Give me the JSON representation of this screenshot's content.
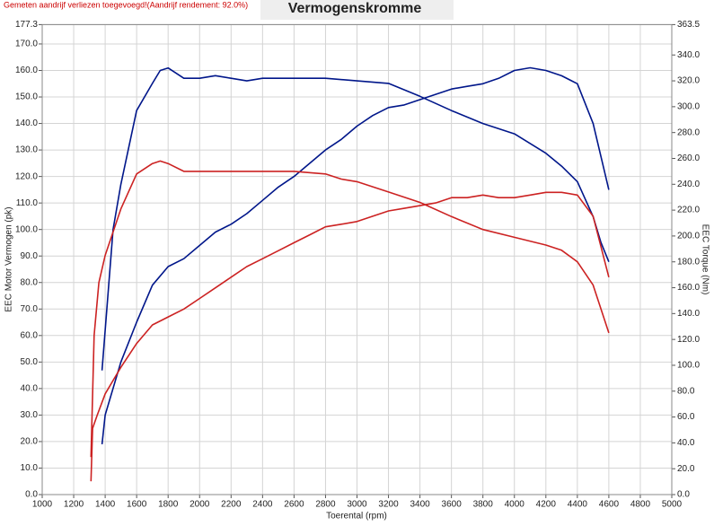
{
  "chart_data": {
    "type": "line",
    "title": "Vermogenskromme",
    "note": "Gemeten aandrijf verliezen toegevoegd!(Aandrijf rendement: 92.0%)",
    "x_label": "Toerental (rpm)",
    "y_label": "EEC Motor Vermogen (pk)",
    "y2_label": "EEC Torque (Nm)",
    "grid": true,
    "xlim": [
      1000,
      5000
    ],
    "xticks": [
      1000,
      1200,
      1400,
      1600,
      1800,
      2000,
      2200,
      2400,
      2600,
      2800,
      3000,
      3200,
      3400,
      3600,
      3800,
      4000,
      4200,
      4400,
      4600,
      4800,
      5000
    ],
    "ylim": [
      0,
      177.3
    ],
    "yticks": [
      {
        "value": 0,
        "label": "0.0"
      },
      {
        "value": 10,
        "label": "10.0"
      },
      {
        "value": 20,
        "label": "20.0"
      },
      {
        "value": 30,
        "label": "30.0"
      },
      {
        "value": 40,
        "label": "40.0"
      },
      {
        "value": 50,
        "label": "50.0"
      },
      {
        "value": 60,
        "label": "60.0"
      },
      {
        "value": 70,
        "label": "70.0"
      },
      {
        "value": 80,
        "label": "80.0"
      },
      {
        "value": 90,
        "label": "90.0"
      },
      {
        "value": 100,
        "label": "100.0"
      },
      {
        "value": 110,
        "label": "110.0"
      },
      {
        "value": 120,
        "label": "120.0"
      },
      {
        "value": 130,
        "label": "130.0"
      },
      {
        "value": 140,
        "label": "140.0"
      },
      {
        "value": 150,
        "label": "150.0"
      },
      {
        "value": 160,
        "label": "160.0"
      },
      {
        "value": 170,
        "label": "170.0"
      },
      177.3
    ],
    "y2lim": [
      0,
      363.5
    ],
    "y2ticks": [
      {
        "value": 0,
        "label": "0.0"
      },
      {
        "value": 20,
        "label": "20.0"
      },
      {
        "value": 40,
        "label": "40.0"
      },
      {
        "value": 60,
        "label": "60.0"
      },
      {
        "value": 80,
        "label": "80.0"
      },
      {
        "value": 100,
        "label": "100.0"
      },
      {
        "value": 120,
        "label": "120.0"
      },
      {
        "value": 140,
        "label": "140.0"
      },
      {
        "value": 160,
        "label": "160.0"
      },
      {
        "value": 180,
        "label": "180.0"
      },
      {
        "value": 200,
        "label": "200.0"
      },
      {
        "value": 220,
        "label": "220.0"
      },
      {
        "value": 240,
        "label": "240.0"
      },
      {
        "value": 260,
        "label": "260.0"
      },
      {
        "value": 280,
        "label": "280.0"
      },
      {
        "value": 300,
        "label": "300.0"
      },
      {
        "value": 320,
        "label": "320.0"
      },
      {
        "value": 340,
        "label": "340.0"
      },
      363.5
    ],
    "series": [
      {
        "color": "#00168a",
        "x": [
          1380,
          1400,
          1500,
          1600,
          1700,
          1800,
          1900,
          2000,
          2100,
          2200,
          2300,
          2400,
          2500,
          2600,
          2700,
          2800,
          2900,
          3000,
          3100,
          3200,
          3300,
          3400,
          3500,
          3600,
          3700,
          3800,
          3900,
          4000,
          4100,
          4200,
          4300,
          4400,
          4500,
          4600
        ],
        "values": [
          19,
          30,
          50,
          65,
          79,
          86,
          89,
          94,
          99,
          102,
          106,
          111,
          116,
          120,
          125,
          130,
          134,
          139,
          143,
          146,
          147,
          149,
          151,
          153,
          154,
          155,
          157,
          160,
          161,
          160,
          158,
          155,
          140,
          115
        ]
      },
      {
        "color": "#00168a",
        "axis": "y2",
        "x": [
          1380,
          1450,
          1500,
          1600,
          1700,
          1750,
          1800,
          1900,
          2000,
          2100,
          2200,
          2300,
          2400,
          2600,
          2800,
          3000,
          3200,
          3400,
          3600,
          3800,
          4000,
          4200,
          4300,
          4400,
          4500,
          4550,
          4600
        ],
        "values": [
          96,
          205,
          240,
          297,
          318,
          328,
          330,
          322,
          322,
          324,
          322,
          320,
          322,
          322,
          322,
          320,
          318,
          308,
          297,
          287,
          279,
          264,
          254,
          242,
          215,
          195,
          180
        ]
      },
      {
        "color": "#cc2222",
        "x": [
          1310,
          1320,
          1350,
          1400,
          1500,
          1600,
          1700,
          1800,
          1900,
          2000,
          2100,
          2200,
          2300,
          2400,
          2500,
          2600,
          2700,
          2800,
          2900,
          3000,
          3100,
          3200,
          3300,
          3400,
          3500,
          3600,
          3700,
          3800,
          3900,
          4000,
          4100,
          4200,
          4300,
          4400,
          4500,
          4600
        ],
        "values": [
          5,
          25,
          30,
          38,
          48,
          57,
          64,
          67,
          70,
          74,
          78,
          82,
          86,
          89,
          92,
          95,
          98,
          101,
          102,
          103,
          105,
          107,
          108,
          109,
          110,
          112,
          112,
          113,
          112,
          112,
          113,
          114,
          114,
          113,
          105,
          82
        ]
      },
      {
        "color": "#cc2222",
        "axis": "y2",
        "x": [
          1310,
          1330,
          1360,
          1400,
          1500,
          1600,
          1700,
          1750,
          1800,
          1900,
          2000,
          2200,
          2400,
          2600,
          2800,
          2900,
          3000,
          3200,
          3400,
          3600,
          3800,
          4000,
          4200,
          4300,
          4400,
          4500,
          4600
        ],
        "values": [
          29,
          123,
          164,
          185,
          221,
          248,
          256,
          258,
          256,
          250,
          250,
          250,
          250,
          250,
          248,
          244,
          242,
          234,
          226,
          215,
          205,
          199,
          193,
          189,
          180,
          162,
          125
        ]
      }
    ]
  }
}
